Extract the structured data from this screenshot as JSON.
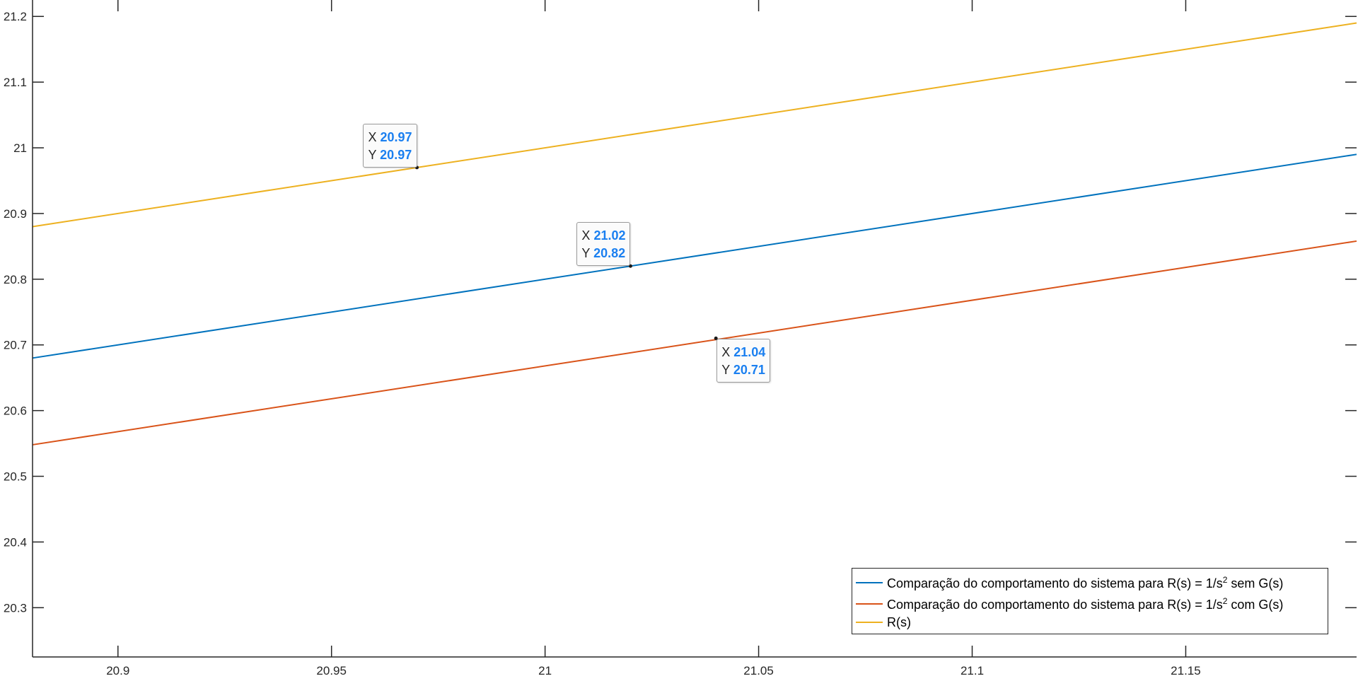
{
  "chart_data": {
    "type": "line",
    "title": "",
    "xlabel": "",
    "ylabel": "",
    "xlim": [
      20.88,
      21.19
    ],
    "ylim": [
      20.225,
      21.225
    ],
    "xticks": [
      "20.9",
      "20.95",
      "21",
      "21.05",
      "21.1",
      "21.15"
    ],
    "xtick_values": [
      20.9,
      20.95,
      21.0,
      21.05,
      21.1,
      21.15
    ],
    "yticks": [
      "20.3",
      "20.4",
      "20.5",
      "20.6",
      "20.7",
      "20.8",
      "20.9",
      "21",
      "21.1",
      "21.2"
    ],
    "ytick_values": [
      20.3,
      20.4,
      20.5,
      20.6,
      20.7,
      20.8,
      20.9,
      21.0,
      21.1,
      21.2
    ],
    "grid": false,
    "legend_position": "bottom-right",
    "series": [
      {
        "name": "Comparação do comportamento do sistema para R(s) = 1/s",
        "name_exponent": "2",
        "name_suffix": " sem G(s)",
        "color": "#0072BD",
        "x": [
          20.88,
          21.19
        ],
        "y": [
          20.68,
          20.99
        ]
      },
      {
        "name": "Comparação do comportamento do sistema para R(s) = 1/s",
        "name_exponent": "2",
        "name_suffix": " com G(s)",
        "color": "#D95319",
        "x": [
          20.88,
          21.19
        ],
        "y": [
          20.548,
          20.858
        ]
      },
      {
        "name": "R(s)",
        "name_exponent": "",
        "name_suffix": "",
        "color": "#EDB120",
        "x": [
          20.88,
          21.19
        ],
        "y": [
          20.88,
          21.19
        ]
      }
    ],
    "datatips": [
      {
        "series": 2,
        "x": 20.97,
        "y": 20.97,
        "x_label": "X",
        "x_text": "20.97",
        "y_label": "Y",
        "y_text": "20.97",
        "placement": "above-left"
      },
      {
        "series": 0,
        "x": 21.02,
        "y": 20.82,
        "x_label": "X",
        "x_text": "21.02",
        "y_label": "Y",
        "y_text": "20.82",
        "placement": "above-left"
      },
      {
        "series": 1,
        "x": 21.04,
        "y": 20.71,
        "x_label": "X",
        "x_text": "21.04",
        "y_label": "Y",
        "y_text": "20.71",
        "placement": "below-right"
      }
    ]
  }
}
